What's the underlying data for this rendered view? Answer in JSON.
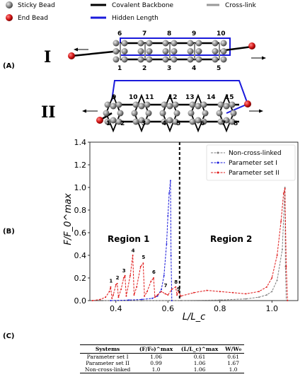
{
  "legend_top": {
    "sticky_bead": "Sticky Bead",
    "end_bead": "End Bead",
    "covalent_backbone": "Covalent Backbone",
    "hidden_length": "Hidden Length",
    "cross_link": "Cross-link"
  },
  "panels": {
    "a": "(A)",
    "b": "(B)",
    "c": "(C)"
  },
  "config_I": {
    "label": "I",
    "top_numbers": [
      "6",
      "7",
      "8",
      "9",
      "10"
    ],
    "bottom_numbers": [
      "1",
      "2",
      "3",
      "4",
      "5"
    ]
  },
  "config_II": {
    "label": "II",
    "numbers": [
      "9",
      "10",
      "11",
      "12",
      "13",
      "14",
      "15",
      "1",
      "2",
      "3",
      "4",
      "5",
      "6",
      "7",
      "8"
    ]
  },
  "colors": {
    "blue": "#1a1adb",
    "red": "#e01b1b",
    "gray": "#7f7f7f",
    "bead_gray": "#8c8c8c",
    "end_red": "#cc1111"
  },
  "chart_data": {
    "type": "line",
    "xlabel": "L/L_c",
    "ylabel": "F/F_0^max",
    "xlim": [
      0.3,
      1.1
    ],
    "ylim": [
      0.0,
      1.4
    ],
    "xticks": [
      "0.4",
      "0.6",
      "0.8",
      "1.0"
    ],
    "yticks": [
      "0.0",
      "0.2",
      "0.4",
      "0.6",
      "0.8",
      "1.0",
      "1.2",
      "1.4"
    ],
    "region_divider_x": 0.645,
    "regions": [
      "Region 1",
      "Region 2"
    ],
    "peak_labels": [
      {
        "text": "1",
        "x": 0.38,
        "y": 0.14
      },
      {
        "text": "2",
        "x": 0.405,
        "y": 0.17
      },
      {
        "text": "3",
        "x": 0.43,
        "y": 0.23
      },
      {
        "text": "4",
        "x": 0.465,
        "y": 0.41
      },
      {
        "text": "5",
        "x": 0.505,
        "y": 0.35
      },
      {
        "text": "6",
        "x": 0.545,
        "y": 0.22
      },
      {
        "text": "7",
        "x": 0.59,
        "y": 0.1
      },
      {
        "text": "8",
        "x": 0.63,
        "y": 0.13
      },
      {
        "text": "9",
        "x": 0.64,
        "y": 0.07
      }
    ],
    "series": [
      {
        "name": "Non-cross-linked",
        "color": "#7f7f7f",
        "x": [
          0.35,
          0.5,
          0.65,
          0.8,
          0.9,
          0.95,
          0.98,
          1.0,
          1.02,
          1.04,
          1.05,
          1.052,
          1.055
        ],
        "y": [
          0.0,
          0.0,
          0.0,
          0.005,
          0.015,
          0.03,
          0.05,
          0.08,
          0.18,
          0.45,
          1.0,
          0.3,
          0.0
        ]
      },
      {
        "name": "Parameter set I",
        "color": "#1a1adb",
        "x": [
          0.38,
          0.45,
          0.5,
          0.54,
          0.56,
          0.575,
          0.585,
          0.595,
          0.6,
          0.605,
          0.61,
          0.612,
          0.615
        ],
        "y": [
          0.0,
          0.005,
          0.01,
          0.02,
          0.04,
          0.1,
          0.22,
          0.5,
          0.75,
          0.95,
          1.06,
          0.4,
          0.0
        ]
      },
      {
        "name": "Parameter set II",
        "color": "#e01b1b",
        "x": [
          0.31,
          0.34,
          0.36,
          0.375,
          0.38,
          0.385,
          0.39,
          0.4,
          0.405,
          0.41,
          0.42,
          0.43,
          0.435,
          0.44,
          0.455,
          0.465,
          0.47,
          0.48,
          0.495,
          0.505,
          0.51,
          0.52,
          0.535,
          0.545,
          0.55,
          0.56,
          0.575,
          0.59,
          0.6,
          0.615,
          0.63,
          0.635,
          0.64,
          0.65,
          0.7,
          0.75,
          0.8,
          0.85,
          0.9,
          0.95,
          0.98,
          1.0,
          1.02,
          1.035,
          1.045,
          1.05,
          1.055,
          1.06
        ],
        "y": [
          0.0,
          0.01,
          0.03,
          0.08,
          0.12,
          0.02,
          0.05,
          0.14,
          0.15,
          0.03,
          0.1,
          0.2,
          0.22,
          0.04,
          0.22,
          0.4,
          0.05,
          0.12,
          0.3,
          0.33,
          0.04,
          0.08,
          0.17,
          0.2,
          0.03,
          0.05,
          0.08,
          0.06,
          0.05,
          0.1,
          0.12,
          0.05,
          0.08,
          0.04,
          0.07,
          0.09,
          0.08,
          0.07,
          0.06,
          0.08,
          0.12,
          0.2,
          0.4,
          0.7,
          0.95,
          0.99,
          0.3,
          0.0
        ]
      }
    ]
  },
  "table": {
    "headers": [
      "Systems",
      "(F/F₀)^max",
      "(L/L_c)^max",
      "W/W₀"
    ],
    "rows": [
      [
        "Parameter set I",
        "1.06",
        "0.61",
        "0.61"
      ],
      [
        "Parameter set II",
        "0.99",
        "1.06",
        "1.67"
      ],
      [
        "Non-cross-linked",
        "1.0",
        "1.06",
        "1.0"
      ]
    ]
  }
}
